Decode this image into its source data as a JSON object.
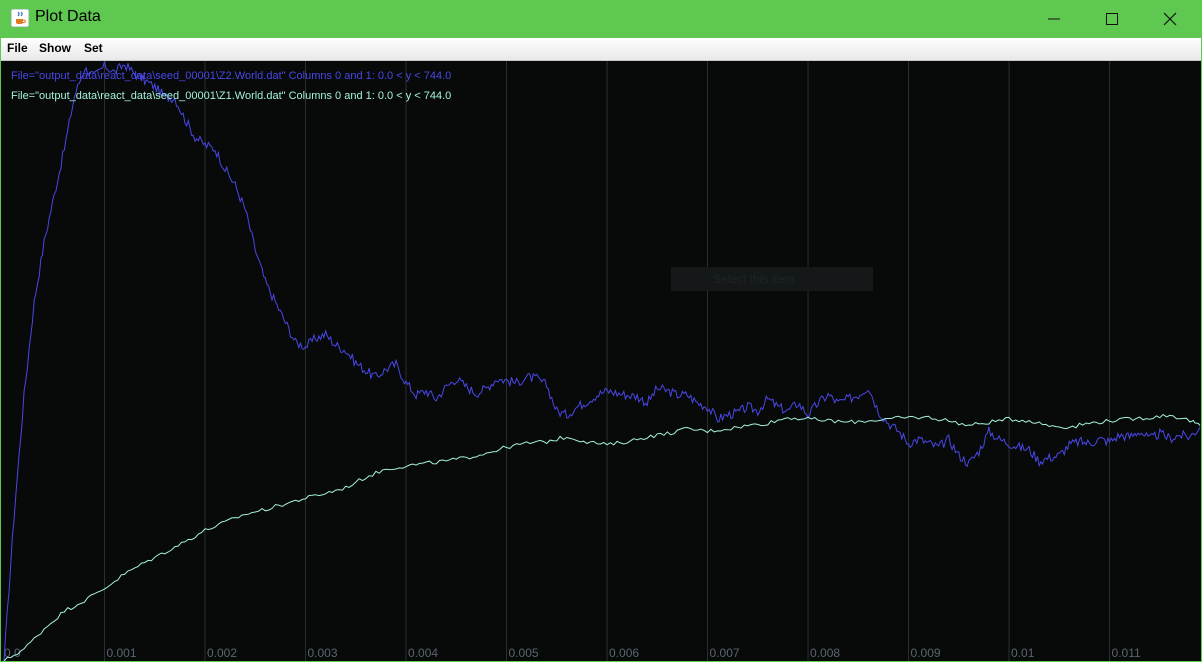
{
  "window": {
    "title": "Plot Data",
    "app_icon": "java-coffee-cup-icon",
    "controls": [
      "minimize-icon",
      "maximize-icon",
      "close-icon"
    ]
  },
  "menu": [
    {
      "label": "File"
    },
    {
      "label": "Show"
    },
    {
      "label": "Set"
    }
  ],
  "plot": {
    "background": "#070a08",
    "tooltip_text": "Select this item"
  },
  "chart_data": {
    "type": "line",
    "title": "",
    "xlabel": "",
    "ylabel": "",
    "xlim": [
      0.0,
      0.0119
    ],
    "ylim": [
      0.0,
      744.0
    ],
    "grid": "vertical",
    "x_ticks": [
      "0.0",
      "0.001",
      "0.002",
      "0.003",
      "0.004",
      "0.005",
      "0.006",
      "0.007",
      "0.008",
      "0.009",
      "0.01",
      "0.011"
    ],
    "legend_position": "top-left",
    "series": [
      {
        "name": "File=\"output_data\\react_data\\seed_00001\\Z2.World.dat\" Columns 0 and 1: 0.0 < y < 744.0",
        "color": "#4a47e8",
        "points": [
          [
            0.0,
            0
          ],
          [
            0.0001,
            180
          ],
          [
            0.0002,
            330
          ],
          [
            0.0003,
            445
          ],
          [
            0.0004,
            520
          ],
          [
            0.0005,
            578
          ],
          [
            0.0006,
            635
          ],
          [
            0.0007,
            700
          ],
          [
            0.0008,
            735
          ],
          [
            0.0009,
            725
          ],
          [
            0.001,
            738
          ],
          [
            0.0011,
            730
          ],
          [
            0.0012,
            740
          ],
          [
            0.0013,
            728
          ],
          [
            0.0014,
            720
          ],
          [
            0.0015,
            712
          ],
          [
            0.0016,
            700
          ],
          [
            0.0017,
            698
          ],
          [
            0.0018,
            672
          ],
          [
            0.0019,
            650
          ],
          [
            0.002,
            640
          ],
          [
            0.0021,
            635
          ],
          [
            0.0022,
            610
          ],
          [
            0.0023,
            590
          ],
          [
            0.0024,
            560
          ],
          [
            0.0025,
            510
          ],
          [
            0.0026,
            470
          ],
          [
            0.0027,
            445
          ],
          [
            0.0028,
            420
          ],
          [
            0.0029,
            395
          ],
          [
            0.003,
            390
          ],
          [
            0.0031,
            400
          ],
          [
            0.0032,
            405
          ],
          [
            0.0033,
            392
          ],
          [
            0.0034,
            385
          ],
          [
            0.0035,
            370
          ],
          [
            0.0036,
            360
          ],
          [
            0.0037,
            352
          ],
          [
            0.0038,
            362
          ],
          [
            0.0039,
            368
          ],
          [
            0.004,
            345
          ],
          [
            0.0041,
            330
          ],
          [
            0.0042,
            335
          ],
          [
            0.0043,
            325
          ],
          [
            0.0044,
            340
          ],
          [
            0.0045,
            350
          ],
          [
            0.0046,
            340
          ],
          [
            0.0047,
            332
          ],
          [
            0.0048,
            338
          ],
          [
            0.0049,
            350
          ],
          [
            0.005,
            348
          ],
          [
            0.0051,
            345
          ],
          [
            0.0052,
            352
          ],
          [
            0.0053,
            350
          ],
          [
            0.0054,
            342
          ],
          [
            0.0055,
            310
          ],
          [
            0.0056,
            305
          ],
          [
            0.0057,
            315
          ],
          [
            0.0058,
            322
          ],
          [
            0.0059,
            330
          ],
          [
            0.006,
            335
          ],
          [
            0.0061,
            332
          ],
          [
            0.0062,
            330
          ],
          [
            0.0063,
            328
          ],
          [
            0.0064,
            320
          ],
          [
            0.0065,
            338
          ],
          [
            0.0066,
            335
          ],
          [
            0.0067,
            330
          ],
          [
            0.0068,
            330
          ],
          [
            0.0069,
            320
          ],
          [
            0.007,
            315
          ],
          [
            0.0071,
            300
          ],
          [
            0.0072,
            305
          ],
          [
            0.0073,
            308
          ],
          [
            0.0074,
            315
          ],
          [
            0.0075,
            310
          ],
          [
            0.0076,
            325
          ],
          [
            0.0077,
            315
          ],
          [
            0.0078,
            310
          ],
          [
            0.0079,
            320
          ],
          [
            0.008,
            305
          ],
          [
            0.0081,
            320
          ],
          [
            0.0082,
            330
          ],
          [
            0.0083,
            320
          ],
          [
            0.0084,
            325
          ],
          [
            0.0085,
            330
          ],
          [
            0.0086,
            340
          ],
          [
            0.0087,
            310
          ],
          [
            0.0088,
            295
          ],
          [
            0.0089,
            285
          ],
          [
            0.009,
            270
          ],
          [
            0.0091,
            275
          ],
          [
            0.0092,
            270
          ],
          [
            0.0093,
            265
          ],
          [
            0.0094,
            275
          ],
          [
            0.0095,
            255
          ],
          [
            0.0096,
            245
          ],
          [
            0.0097,
            260
          ],
          [
            0.0098,
            285
          ],
          [
            0.0099,
            275
          ],
          [
            0.01,
            270
          ],
          [
            0.0101,
            265
          ],
          [
            0.0102,
            262
          ],
          [
            0.0103,
            248
          ],
          [
            0.0104,
            252
          ],
          [
            0.0105,
            255
          ],
          [
            0.0106,
            268
          ],
          [
            0.0107,
            272
          ],
          [
            0.0108,
            270
          ],
          [
            0.0109,
            275
          ],
          [
            0.011,
            272
          ],
          [
            0.0111,
            280
          ],
          [
            0.0112,
            278
          ],
          [
            0.0113,
            285
          ],
          [
            0.0114,
            275
          ],
          [
            0.0115,
            282
          ],
          [
            0.0116,
            276
          ],
          [
            0.0117,
            280
          ],
          [
            0.0118,
            278
          ],
          [
            0.0119,
            290
          ]
        ]
      },
      {
        "name": "File=\"output_data\\react_data\\seed_00001\\Z1.World.dat\" Columns 0 and 1: 0.0 < y < 744.0",
        "color": "#a6f2e0",
        "points": [
          [
            0.0,
            0
          ],
          [
            0.0002,
            15
          ],
          [
            0.0004,
            40
          ],
          [
            0.0006,
            62
          ],
          [
            0.0008,
            75
          ],
          [
            0.001,
            90
          ],
          [
            0.0012,
            108
          ],
          [
            0.0014,
            122
          ],
          [
            0.0016,
            135
          ],
          [
            0.0018,
            148
          ],
          [
            0.002,
            162
          ],
          [
            0.0022,
            172
          ],
          [
            0.0024,
            182
          ],
          [
            0.0026,
            188
          ],
          [
            0.0028,
            195
          ],
          [
            0.003,
            202
          ],
          [
            0.0032,
            208
          ],
          [
            0.0034,
            215
          ],
          [
            0.0036,
            228
          ],
          [
            0.0038,
            238
          ],
          [
            0.004,
            242
          ],
          [
            0.0042,
            245
          ],
          [
            0.0044,
            248
          ],
          [
            0.0046,
            252
          ],
          [
            0.0048,
            258
          ],
          [
            0.005,
            265
          ],
          [
            0.0052,
            270
          ],
          [
            0.0054,
            272
          ],
          [
            0.0056,
            278
          ],
          [
            0.0058,
            272
          ],
          [
            0.006,
            268
          ],
          [
            0.0062,
            272
          ],
          [
            0.0064,
            278
          ],
          [
            0.0066,
            282
          ],
          [
            0.0068,
            288
          ],
          [
            0.007,
            285
          ],
          [
            0.0072,
            288
          ],
          [
            0.0074,
            292
          ],
          [
            0.0076,
            295
          ],
          [
            0.0078,
            302
          ],
          [
            0.008,
            300
          ],
          [
            0.0082,
            298
          ],
          [
            0.0084,
            296
          ],
          [
            0.0086,
            298
          ],
          [
            0.0088,
            300
          ],
          [
            0.009,
            302
          ],
          [
            0.0092,
            302
          ],
          [
            0.0094,
            298
          ],
          [
            0.0096,
            292
          ],
          [
            0.0098,
            296
          ],
          [
            0.01,
            300
          ],
          [
            0.0102,
            298
          ],
          [
            0.0104,
            292
          ],
          [
            0.0106,
            290
          ],
          [
            0.0108,
            295
          ],
          [
            0.011,
            298
          ],
          [
            0.0112,
            300
          ],
          [
            0.0114,
            302
          ],
          [
            0.0116,
            305
          ],
          [
            0.0118,
            298
          ],
          [
            0.0119,
            292
          ]
        ]
      }
    ]
  }
}
